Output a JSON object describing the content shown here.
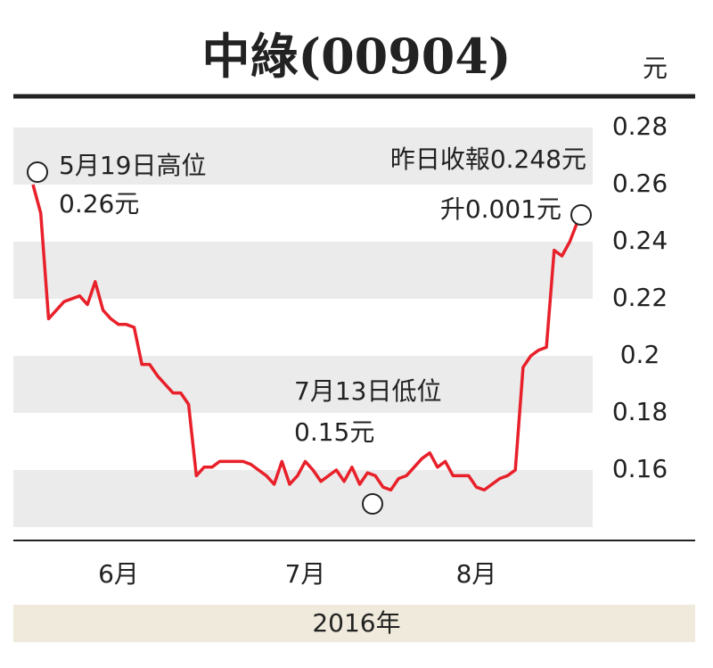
{
  "chart_data": {
    "type": "line",
    "title": "中綠(00904)",
    "y_label": "元",
    "x_label": "2016年",
    "categories": [
      null,
      null,
      null,
      null,
      null,
      null,
      null,
      null,
      null,
      null,
      null,
      "6月",
      null,
      null,
      null,
      null,
      null,
      null,
      null,
      null,
      null,
      null,
      null,
      null,
      null,
      null,
      null,
      null,
      null,
      null,
      null,
      null,
      null,
      null,
      null,
      "7月",
      null,
      null,
      null,
      null,
      null,
      null,
      null,
      null,
      null,
      null,
      null,
      null,
      null,
      null,
      null,
      null,
      null,
      null,
      null,
      null,
      null,
      "8月",
      null,
      null,
      null,
      null,
      null,
      null,
      null,
      null,
      null,
      null,
      null,
      null,
      null
    ],
    "series": [
      {
        "name": "中綠",
        "color": "#e8202a",
        "values": [
          0.26,
          0.25,
          0.213,
          0.216,
          0.219,
          0.22,
          0.221,
          0.218,
          0.226,
          0.216,
          0.213,
          0.211,
          0.211,
          0.21,
          0.197,
          0.197,
          0.193,
          0.19,
          0.187,
          0.187,
          0.183,
          0.158,
          0.161,
          0.161,
          0.163,
          0.163,
          0.163,
          0.163,
          0.162,
          0.16,
          0.158,
          0.155,
          0.163,
          0.155,
          0.158,
          0.163,
          0.16,
          0.156,
          0.158,
          0.16,
          0.156,
          0.161,
          0.155,
          0.159,
          0.158,
          0.154,
          0.153,
          0.157,
          0.158,
          0.161,
          0.164,
          0.166,
          0.161,
          0.163,
          0.158,
          0.158,
          0.158,
          0.154,
          0.153,
          0.155,
          0.157,
          0.158,
          0.16,
          0.196,
          0.2,
          0.202,
          0.203,
          0.237,
          0.235,
          0.24,
          0.247
        ]
      }
    ],
    "ylim": [
      0.14,
      0.28
    ],
    "yticks": [
      0.16,
      0.18,
      0.2,
      0.22,
      0.24,
      0.26,
      0.28
    ],
    "grid": "bands",
    "annotations": [
      "5月19日高位",
      "0.26元",
      "昨日收報0.248元",
      "升0.001元",
      "7月13日低位",
      "0.15元"
    ]
  }
}
